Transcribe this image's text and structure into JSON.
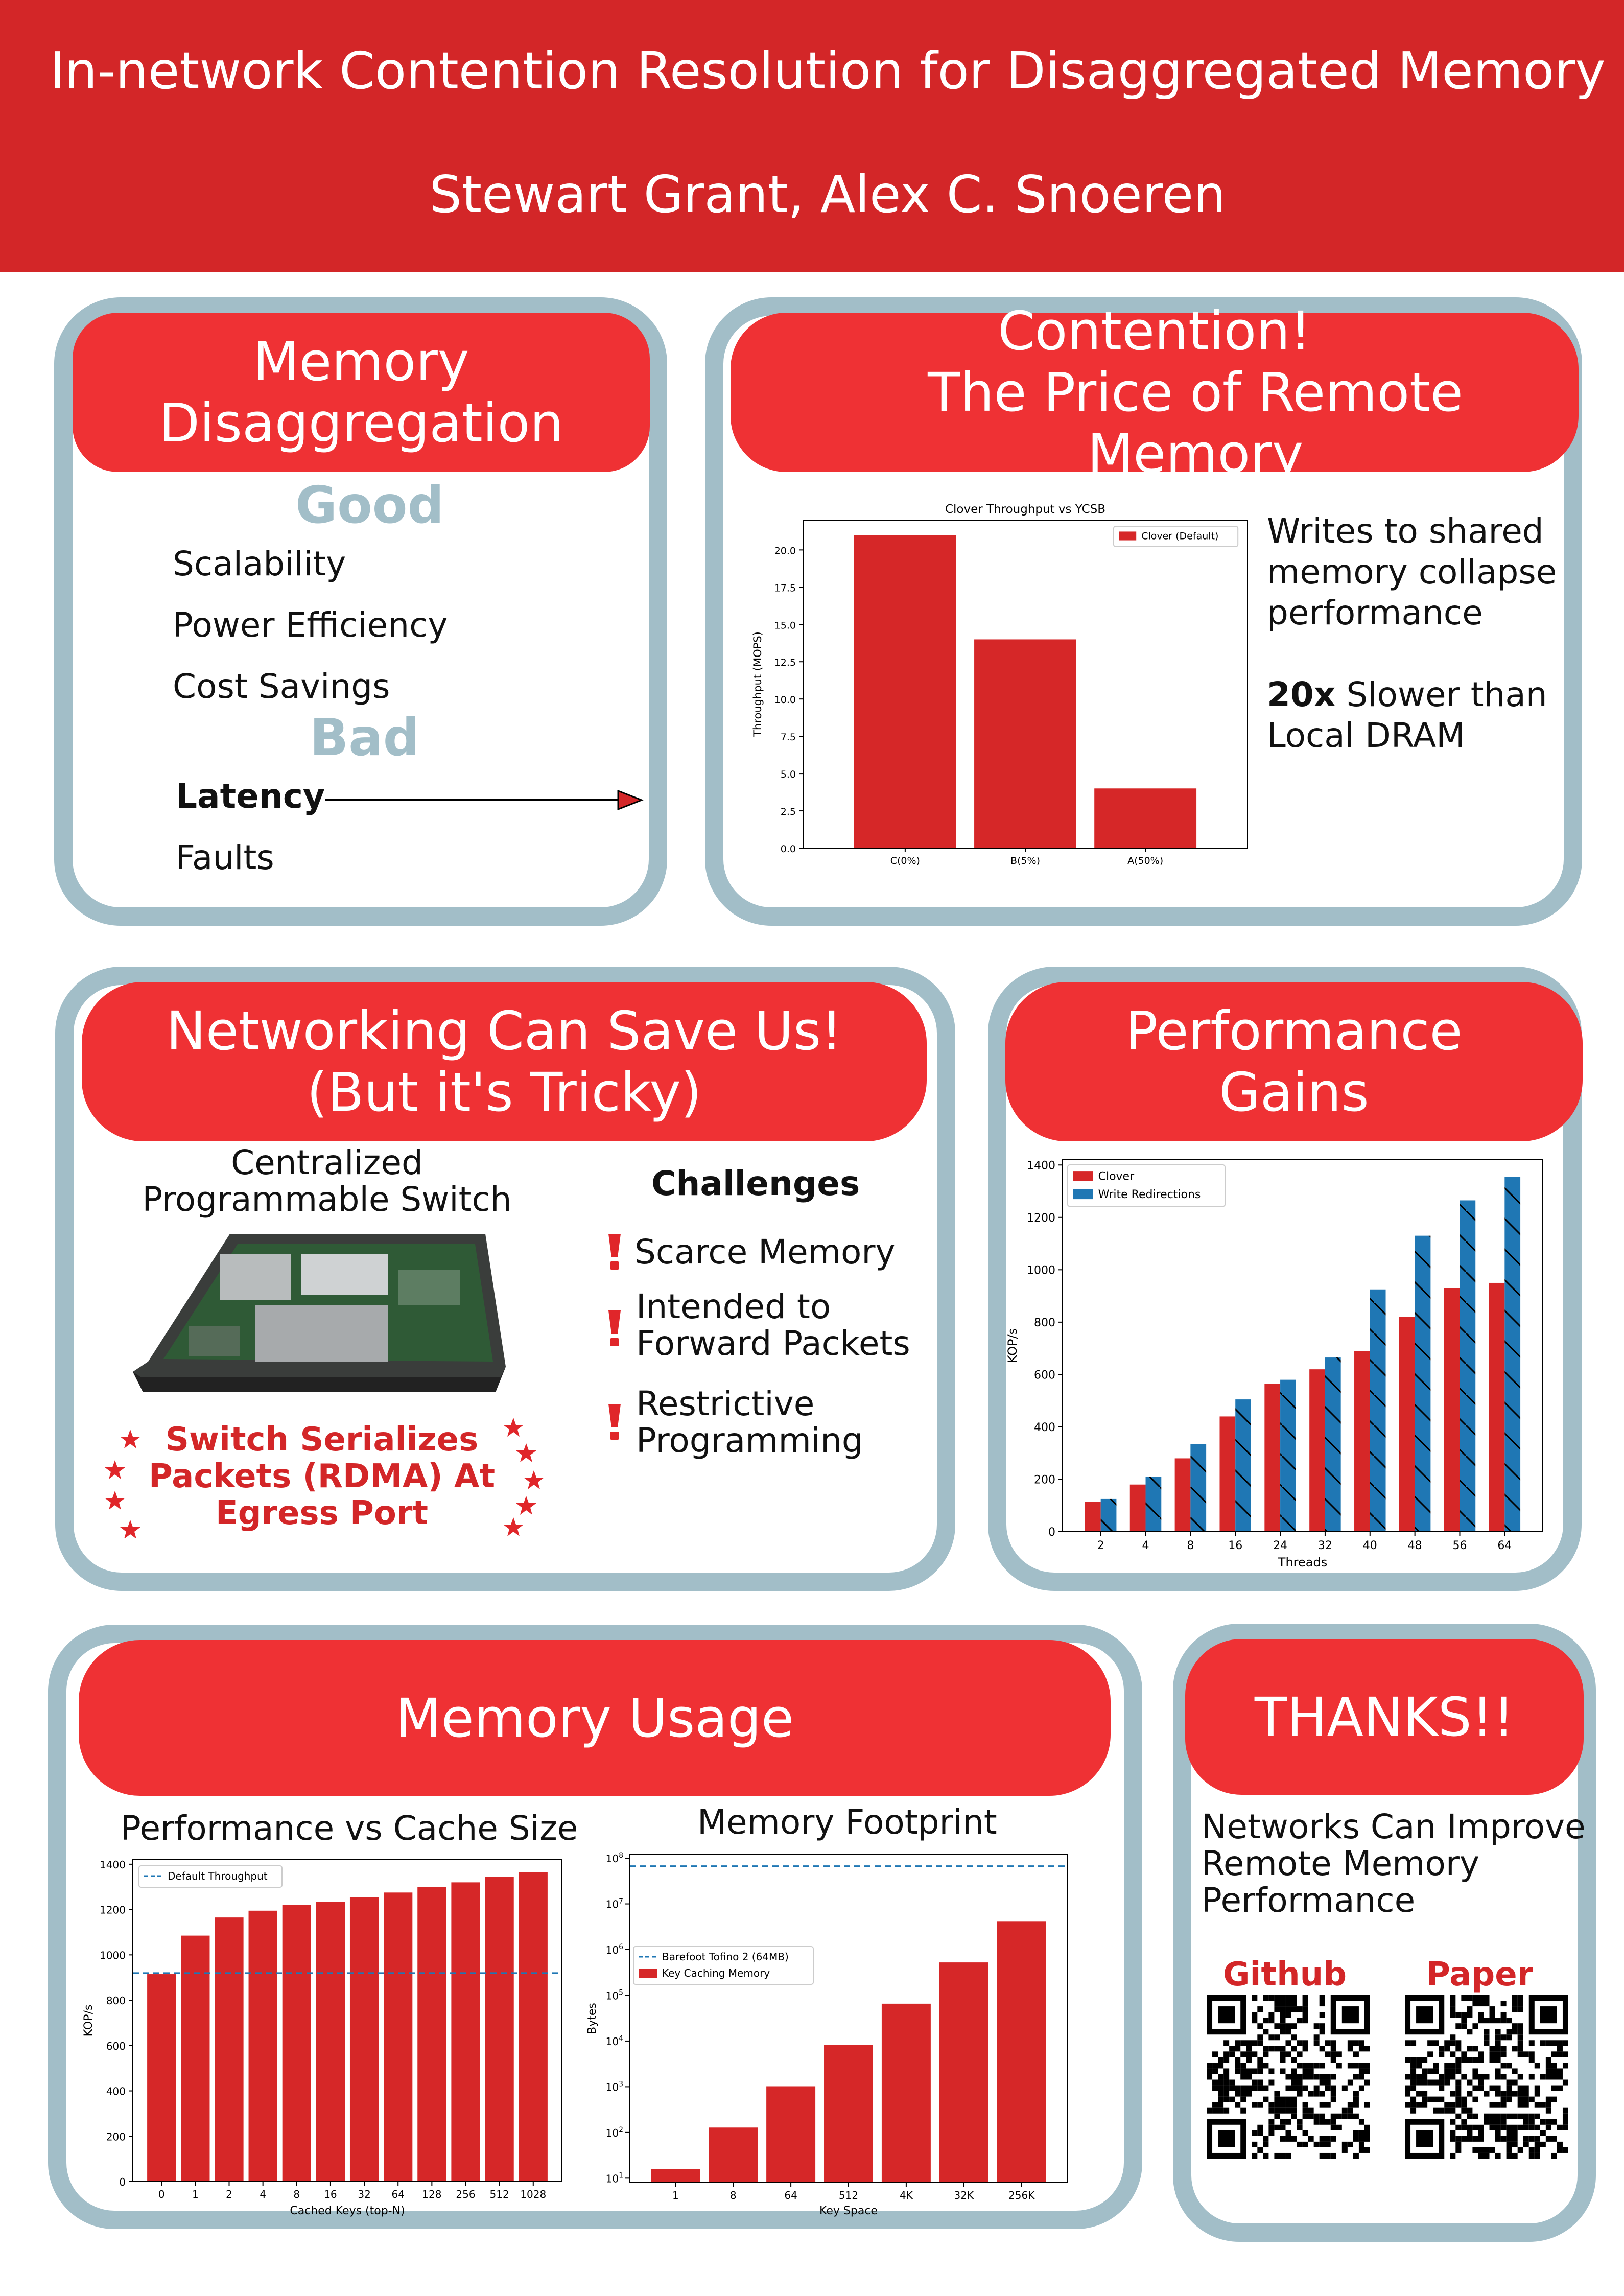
{
  "header": {
    "title": "In-network Contention Resolution for Disaggregated Memory",
    "authors": "Stewart Grant, Alex C. Snoeren"
  },
  "colors": {
    "header_red": "#d32628",
    "banner_red": "#ef3134",
    "panel_border": "#a2bec8",
    "bar_red": "#d62728",
    "bar_blue": "#1f77b4"
  },
  "memory_disaggregation": {
    "title_line1": "Memory",
    "title_line2": "Disaggregation",
    "good_heading": "Good",
    "good_items": [
      "Scalability",
      "Power Efficiency",
      "Cost Savings"
    ],
    "bad_heading": "Bad",
    "bad_items": [
      "Latency",
      "Faults"
    ]
  },
  "contention": {
    "title_line1": "Contention!",
    "title_line2": "The Price of Remote Memory",
    "text1_line1": "Writes to shared",
    "text1_line2": "memory collapse",
    "text1_line3": "performance",
    "text2_bold": "20x",
    "text2_rest": " Slower than",
    "text2_line2": "Local DRAM"
  },
  "networking": {
    "title_line1": "Networking Can Save Us!",
    "title_line2": "(But it's Tricky)",
    "switch_label_line1": "Centralized",
    "switch_label_line2": "Programmable Switch",
    "serialize_line1": "Switch Serializes",
    "serialize_line2": "Packets (RDMA) At",
    "serialize_line3": "Egress Port",
    "challenges_heading": "Challenges",
    "challenge1": "Scarce Memory",
    "challenge2_line1": "Intended to",
    "challenge2_line2": "Forward Packets",
    "challenge3_line1": "Restrictive",
    "challenge3_line2": "Programming"
  },
  "performance": {
    "title_line1": "Performance",
    "title_line2": "Gains"
  },
  "memory_usage": {
    "title": "Memory Usage",
    "chart1_heading": "Performance vs Cache Size",
    "chart2_heading": "Memory Footprint"
  },
  "thanks": {
    "title": "THANKS!!",
    "text_line1": "Networks Can Improve",
    "text_line2": "Remote Memory",
    "text_line3": "Performance",
    "github_label": "Github",
    "paper_label": "Paper"
  },
  "chart_data": [
    {
      "id": "clover",
      "type": "bar",
      "title": "Clover Throughput vs YCSB",
      "ylabel": "Throughput (MOPS)",
      "xlabel": "",
      "categories": [
        "C(0%)",
        "B(5%)",
        "A(50%)"
      ],
      "series": [
        {
          "name": "Clover (Default)",
          "values": [
            21,
            14,
            4
          ]
        }
      ],
      "ylim": [
        0,
        22
      ],
      "yticks": [
        "0.0",
        "2.5",
        "5.0",
        "7.5",
        "10.0",
        "12.5",
        "15.0",
        "17.5",
        "20.0"
      ],
      "legend": "top-right",
      "grid": false
    },
    {
      "id": "performance",
      "type": "bar",
      "title": "",
      "ylabel": "KOP/s",
      "xlabel": "Threads",
      "categories": [
        "2",
        "4",
        "8",
        "16",
        "24",
        "32",
        "40",
        "48",
        "56",
        "64"
      ],
      "series": [
        {
          "name": "Clover",
          "values": [
            115,
            180,
            280,
            440,
            565,
            620,
            690,
            820,
            930,
            950
          ]
        },
        {
          "name": "Write Redirections",
          "values": [
            125,
            210,
            335,
            505,
            580,
            665,
            925,
            1130,
            1265,
            1355
          ]
        }
      ],
      "ylim": [
        0,
        1420
      ],
      "yticks": [
        "0",
        "200",
        "400",
        "600",
        "800",
        "1000",
        "1200",
        "1400"
      ],
      "legend": "top-left",
      "grid": false
    },
    {
      "id": "cache",
      "type": "bar",
      "title": "",
      "ylabel": "KOP/s",
      "xlabel": "Cached Keys (top-N)",
      "categories": [
        "0",
        "1",
        "2",
        "4",
        "8",
        "16",
        "32",
        "64",
        "128",
        "256",
        "512",
        "1028"
      ],
      "series": [
        {
          "name": "",
          "values": [
            915,
            1085,
            1165,
            1195,
            1220,
            1235,
            1255,
            1275,
            1300,
            1320,
            1345,
            1365
          ]
        }
      ],
      "reference_lines": [
        {
          "name": "Default Throughput",
          "value": 920
        }
      ],
      "ylim": [
        0,
        1420
      ],
      "yticks": [
        "0",
        "200",
        "400",
        "600",
        "800",
        "1000",
        "1200",
        "1400"
      ],
      "legend": "top-left",
      "grid": false
    },
    {
      "id": "footprint",
      "type": "bar",
      "title": "",
      "ylabel": "Bytes",
      "xlabel": "Key Space",
      "categories": [
        "1",
        "8",
        "64",
        "512",
        "4K",
        "32K",
        "256K"
      ],
      "series": [
        {
          "name": "Key Caching Memory",
          "values": [
            16,
            128,
            1024,
            8192,
            65536,
            524288,
            4194304
          ]
        }
      ],
      "reference_lines": [
        {
          "name": "Barefoot Tofino 2 (64MB)",
          "value": 67108864
        }
      ],
      "yscale": "log",
      "ylim": [
        8,
        120000000
      ],
      "legend": "center-left",
      "grid": false
    }
  ]
}
